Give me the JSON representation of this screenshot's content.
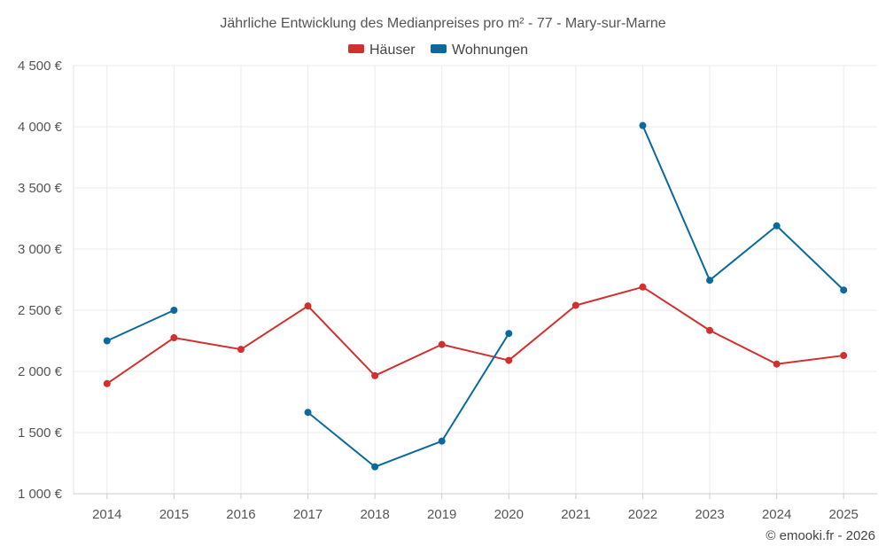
{
  "chart_data": {
    "type": "line",
    "title": "Jährliche Entwicklung des Medianpreises pro m² - 77 - Mary-sur-Marne",
    "categories": [
      "2014",
      "2015",
      "2016",
      "2017",
      "2018",
      "2019",
      "2020",
      "2021",
      "2022",
      "2023",
      "2024",
      "2025"
    ],
    "ylim": [
      1000,
      4500
    ],
    "yticks": [
      1000,
      1500,
      2000,
      2500,
      3000,
      3500,
      4000,
      4500
    ],
    "ytick_labels": [
      "1 000 €",
      "1 500 €",
      "2 000 €",
      "2 500 €",
      "3 000 €",
      "3 500 €",
      "4 000 €",
      "4 500 €"
    ],
    "grid": true,
    "legend_position": "top-center",
    "series": [
      {
        "name": "Häuser",
        "color": "#d32f2f",
        "values": [
          1900,
          2275,
          2180,
          2535,
          1965,
          2220,
          2090,
          2540,
          2690,
          2335,
          2060,
          2130
        ]
      },
      {
        "name": "Wohnungen",
        "color": "#0a6a9e",
        "values": [
          2250,
          2500,
          null,
          1665,
          1220,
          1430,
          2310,
          null,
          4010,
          2745,
          3190,
          2665
        ]
      }
    ],
    "credit": "© emooki.fr - 2026"
  }
}
